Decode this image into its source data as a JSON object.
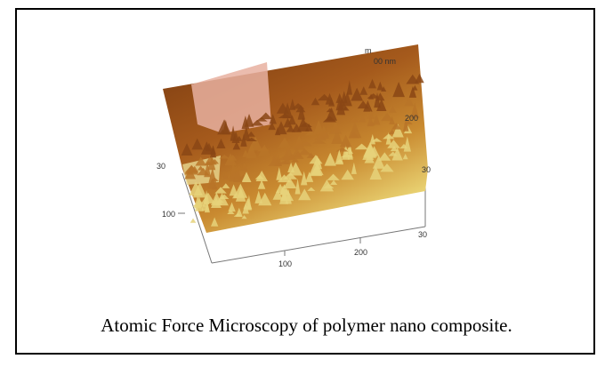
{
  "figure": {
    "image_labels": {
      "top_unit_1": "m",
      "top_unit_2": "00 nm",
      "right_tick_1": "200",
      "right_tick_2": "30",
      "left_tick_1": "30",
      "left_tick_2": "100",
      "bottom_tick_1": "100",
      "bottom_tick_2": "200",
      "bottom_tick_3": "30"
    },
    "caption": "Atomic Force Microscopy of polymer nano composite."
  }
}
